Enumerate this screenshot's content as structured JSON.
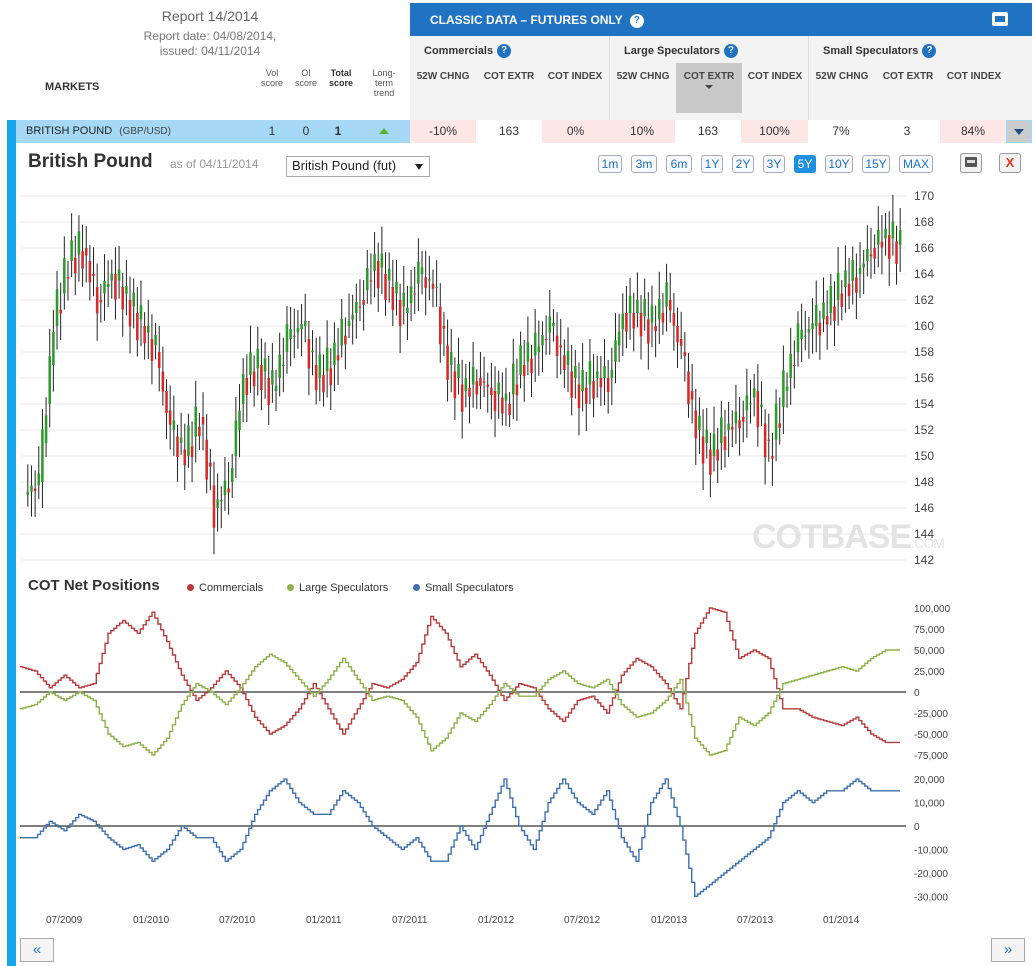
{
  "report": {
    "title": "Report 14/2014",
    "date_line1": "Report date: 04/08/2014,",
    "date_line2": "issued: 04/11/2014",
    "markets_label": "MARKETS",
    "col_vol": "Vol score",
    "col_oi": "OI score",
    "col_total": "Total score",
    "col_trend": "Long-term trend"
  },
  "classic": {
    "title": "CLASSIC DATA – FUTURES ONLY",
    "help": "?",
    "groups": [
      {
        "name": "Commercials",
        "cols": [
          "52W CHNG",
          "COT EXTR",
          "COT INDEX"
        ]
      },
      {
        "name": "Large Speculators",
        "cols": [
          "52W CHNG",
          "COT EXTR",
          "COT INDEX"
        ]
      },
      {
        "name": "Small Speculators",
        "cols": [
          "52W CHNG",
          "COT EXTR",
          "COT INDEX"
        ]
      }
    ]
  },
  "row": {
    "market": "BRITISH POUND",
    "symbol": "(GBP/USD)",
    "vol": "1",
    "oi": "0",
    "total": "1",
    "values": [
      "-10%",
      "163",
      "0%",
      "10%",
      "163",
      "100%",
      "7%",
      "3",
      "84%"
    ]
  },
  "chart_header": {
    "title": "British Pound",
    "asof": "as of 04/11/2014",
    "select": "British Pound (fut)",
    "ranges": [
      "1m",
      "3m",
      "6m",
      "1Y",
      "2Y",
      "3Y",
      "5Y",
      "10Y",
      "15Y",
      "MAX"
    ],
    "active_range": "5Y",
    "close": "X"
  },
  "watermark": {
    "main": "COTBASE",
    "sub": ".COM"
  },
  "cot": {
    "title": "COT Net Positions",
    "legend": [
      {
        "name": "Commercials",
        "color": "#b83a3a"
      },
      {
        "name": "Large Speculators",
        "color": "#8db04a"
      },
      {
        "name": "Small Speculators",
        "color": "#3d6fb0"
      }
    ]
  },
  "nav": {
    "prev": "«",
    "next": "»"
  },
  "chart_data": [
    {
      "type": "candlestick",
      "title": "British Pound",
      "ylim": [
        142,
        170
      ],
      "yticks": [
        "142",
        "144",
        "146",
        "148",
        "150",
        "152",
        "154",
        "156",
        "158",
        "160",
        "162",
        "164",
        "166",
        "168",
        "170"
      ],
      "x": [
        "2009-05",
        "2009-06",
        "2009-07",
        "2009-08",
        "2009-09",
        "2009-10",
        "2009-11",
        "2009-12",
        "2010-01",
        "2010-02",
        "2010-03",
        "2010-04",
        "2010-05",
        "2010-06",
        "2010-07",
        "2010-08",
        "2010-09",
        "2010-10",
        "2010-11",
        "2010-12",
        "2011-01",
        "2011-02",
        "2011-03",
        "2011-04",
        "2011-05",
        "2011-06",
        "2011-07",
        "2011-08",
        "2011-09",
        "2011-10",
        "2011-11",
        "2011-12",
        "2012-01",
        "2012-02",
        "2012-03",
        "2012-04",
        "2012-05",
        "2012-06",
        "2012-07",
        "2012-08",
        "2012-09",
        "2012-10",
        "2012-11",
        "2012-12",
        "2013-01",
        "2013-02",
        "2013-03",
        "2013-04",
        "2013-05",
        "2013-06",
        "2013-07",
        "2013-08",
        "2013-09",
        "2013-10",
        "2013-11",
        "2013-12",
        "2014-01",
        "2014-02",
        "2014-03",
        "2014-04"
      ],
      "close": [
        148,
        160,
        165,
        166,
        162,
        164,
        162,
        160,
        158,
        152,
        150,
        153,
        146,
        148,
        156,
        157,
        155,
        159,
        160,
        156,
        157,
        160,
        162,
        165,
        163,
        161,
        164,
        163,
        157,
        155,
        156,
        155,
        154,
        157,
        158,
        160,
        157,
        155,
        156,
        156,
        161,
        161,
        160,
        162,
        158,
        152,
        150,
        152,
        153,
        155,
        150,
        155,
        159,
        160,
        161,
        163,
        164,
        166,
        167,
        166
      ],
      "xticks": [
        "07/2009",
        "01/2010",
        "07/2010",
        "01/2011",
        "07/2011",
        "01/2012",
        "07/2012",
        "01/2013",
        "07/2013",
        "01/2014"
      ]
    },
    {
      "type": "line",
      "title": "COT Net Positions",
      "ylim": [
        -100000,
        100000
      ],
      "yticks": [
        "100,000",
        "75,000",
        "50,000",
        "25,000",
        "0",
        "-25,000",
        "-50,000",
        "-75,000"
      ],
      "series": [
        {
          "name": "Commercials",
          "values": [
            30000,
            25000,
            5000,
            20000,
            5000,
            10000,
            70000,
            85000,
            70000,
            95000,
            60000,
            20000,
            -10000,
            5000,
            25000,
            5000,
            -30000,
            -50000,
            -40000,
            -20000,
            10000,
            -20000,
            -50000,
            -20000,
            10000,
            5000,
            15000,
            35000,
            90000,
            70000,
            30000,
            45000,
            20000,
            -10000,
            10000,
            5000,
            -20000,
            -35000,
            -10000,
            -5000,
            -25000,
            20000,
            40000,
            30000,
            10000,
            -20000,
            70000,
            100000,
            95000,
            40000,
            50000,
            40000,
            -20000,
            -20000,
            -30000,
            -35000,
            -40000,
            -30000,
            -50000,
            -60000
          ]
        },
        {
          "name": "Large Speculators",
          "values": [
            -20000,
            -15000,
            0,
            -10000,
            0,
            -10000,
            -50000,
            -65000,
            -60000,
            -75000,
            -55000,
            -15000,
            10000,
            0,
            -15000,
            5000,
            30000,
            45000,
            35000,
            15000,
            -5000,
            15000,
            40000,
            15000,
            -10000,
            -5000,
            -10000,
            -30000,
            -70000,
            -55000,
            -25000,
            -35000,
            -15000,
            10000,
            -5000,
            -5000,
            15000,
            25000,
            10000,
            5000,
            15000,
            -15000,
            -30000,
            -25000,
            -10000,
            15000,
            -55000,
            -75000,
            -70000,
            -30000,
            -40000,
            -25000,
            10000,
            15000,
            20000,
            25000,
            30000,
            25000,
            40000,
            50000
          ]
        },
        {
          "name": "Small Speculators",
          "values": [
            -5000,
            -5000,
            2000,
            -2000,
            5000,
            2000,
            -5000,
            -10000,
            -8000,
            -15000,
            -10000,
            0,
            -5000,
            -5000,
            -15000,
            -10000,
            5000,
            15000,
            20000,
            10000,
            5000,
            5000,
            15000,
            10000,
            0,
            -5000,
            -10000,
            -5000,
            -15000,
            -15000,
            0,
            -10000,
            5000,
            20000,
            0,
            -10000,
            10000,
            20000,
            10000,
            5000,
            15000,
            -5000,
            -15000,
            10000,
            20000,
            0,
            -30000,
            -25000,
            -20000,
            -15000,
            -10000,
            -5000,
            10000,
            15000,
            10000,
            15000,
            15000,
            20000,
            15000,
            15000
          ]
        }
      ],
      "yticks_small": [
        "20,000",
        "10,000",
        "0",
        "-10,000",
        "-20,000",
        "-30,000"
      ]
    }
  ]
}
